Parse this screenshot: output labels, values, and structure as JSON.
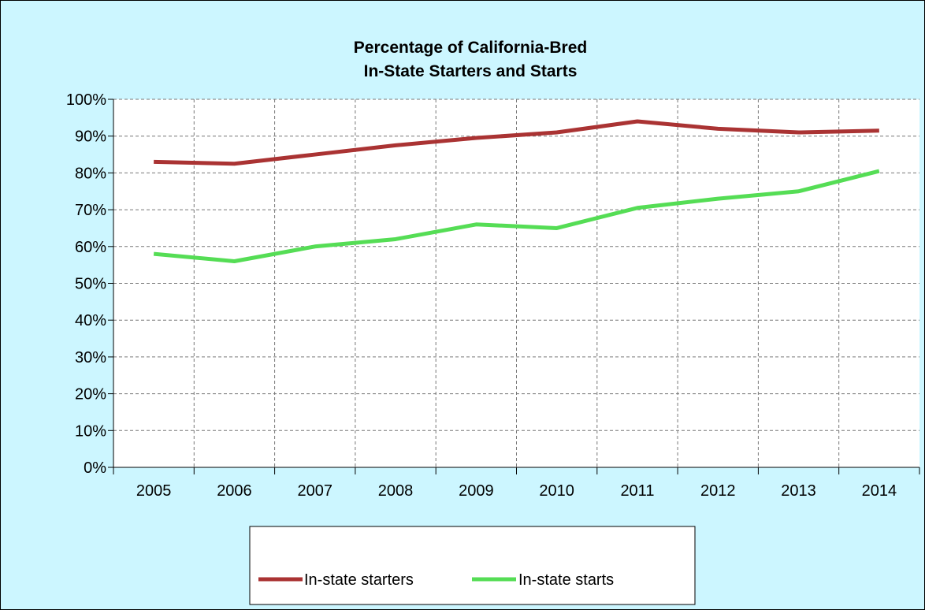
{
  "chart_data": {
    "type": "line",
    "title": [
      "Percentage of California-Bred",
      "In-State Starters and Starts"
    ],
    "xlabel": "",
    "ylabel": "",
    "categories": [
      "2005",
      "2006",
      "2007",
      "2008",
      "2009",
      "2010",
      "2011",
      "2012",
      "2013",
      "2014"
    ],
    "y_ticks": [
      "0%",
      "10%",
      "20%",
      "30%",
      "40%",
      "50%",
      "60%",
      "70%",
      "80%",
      "90%",
      "100%"
    ],
    "ylim": [
      0,
      100
    ],
    "grid": true,
    "legend_position": "bottom",
    "series": [
      {
        "name": "In-state starters",
        "color": "#aa3333",
        "values": [
          83,
          82.5,
          85,
          87.5,
          89.5,
          91,
          94,
          92,
          91,
          91.5
        ]
      },
      {
        "name": "In-state starts",
        "color": "#55dd55",
        "values": [
          58,
          56,
          60,
          62,
          66,
          65,
          70.5,
          73,
          75,
          80.5
        ]
      }
    ]
  },
  "colors": {
    "background": "#ccf6ff",
    "plot_background": "#ffffff",
    "grid": "#777777"
  }
}
